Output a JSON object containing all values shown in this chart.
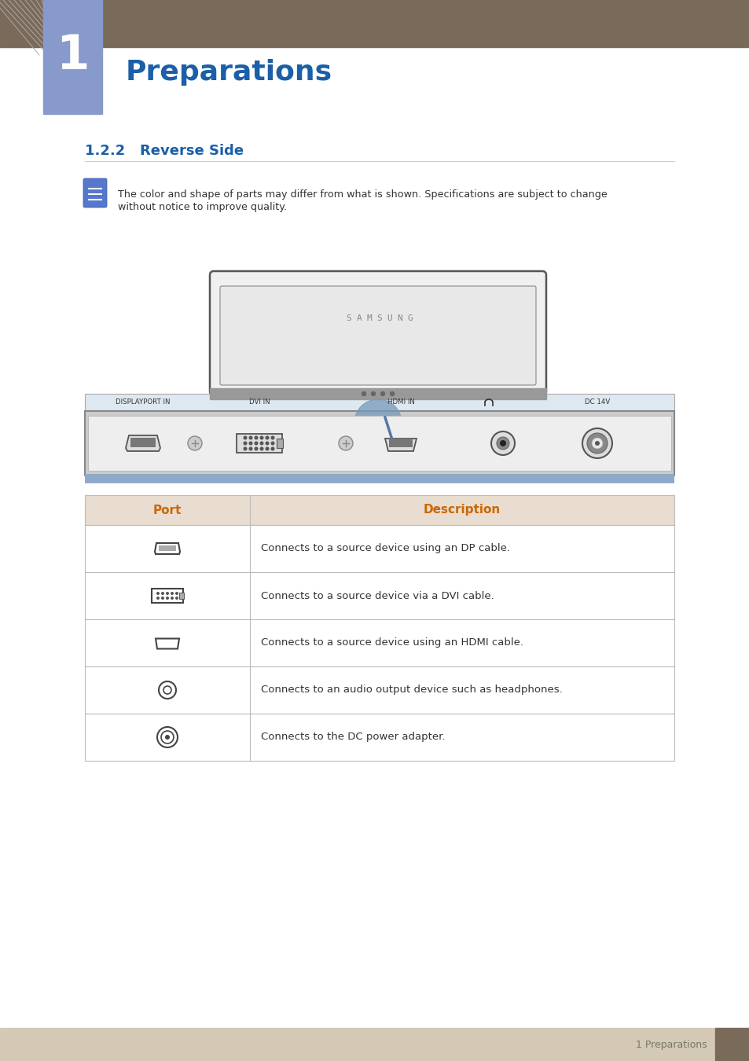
{
  "title": "Preparations",
  "chapter_num": "1",
  "section": "1.2.2   Reverse Side",
  "note_text_line1": "The color and shape of parts may differ from what is shown. Specifications are subject to change",
  "note_text_line2": "without notice to improve quality.",
  "header_bg": "#7a6a5a",
  "chapter_box_color": "#8899cc",
  "section_color": "#1a5fa8",
  "footer_bg": "#d4c9b5",
  "footer_text": "1 Preparations",
  "footer_accent": "#7a6a5a",
  "table_header_bg": "#e8ddd0",
  "table_header_text": "#cc6600",
  "port_labels": [
    "DISPLAYPORT IN",
    "DVI IN",
    "HDMI IN",
    "",
    "DC 14V"
  ],
  "port_descriptions": [
    "Connects to a source device using an DP cable.",
    "Connects to a source device via a DVI cable.",
    "Connects to a source device using an HDMI cable.",
    "Connects to an audio output device such as headphones.",
    "Connects to the DC power adapter."
  ],
  "samsung_text": "SAMSUNG",
  "arrow_color": "#6699cc",
  "panel_label_bg": "#dde8f0",
  "panel_bg": "#cccccc",
  "panel_inner_bg": "#eeeeee"
}
